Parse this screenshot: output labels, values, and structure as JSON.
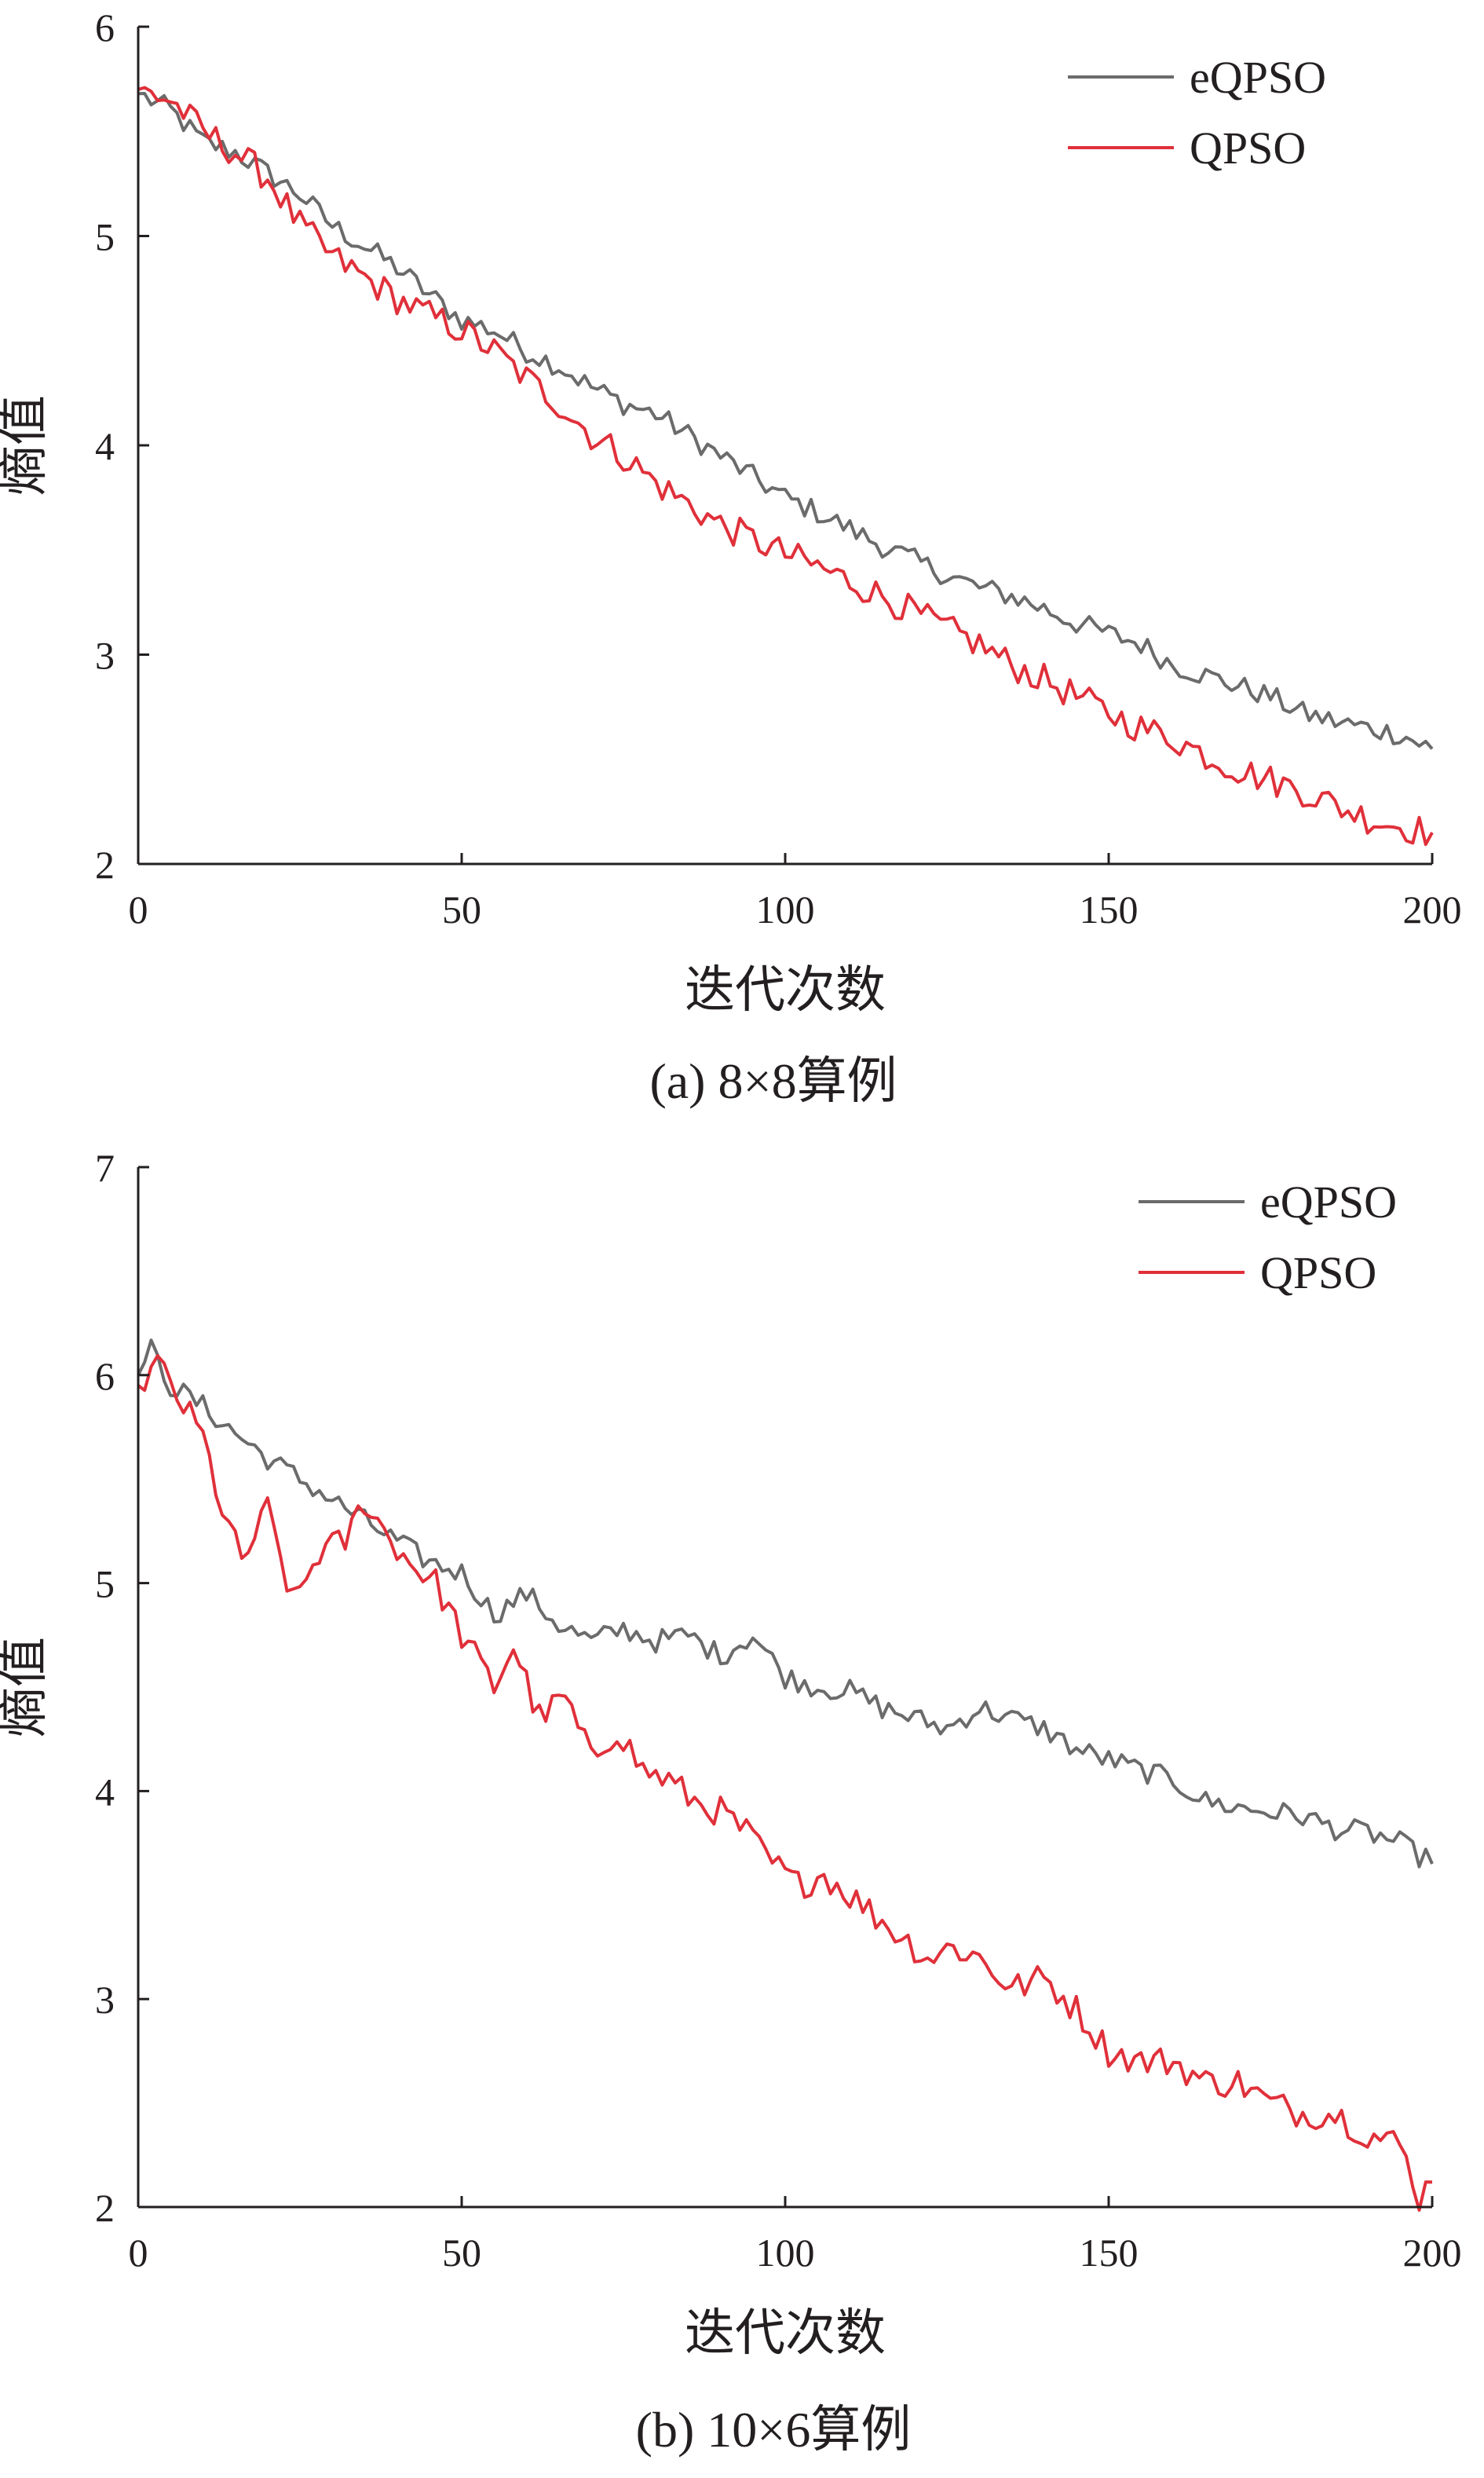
{
  "colors": {
    "eqpso": "#6b6b6b",
    "qpso": "#e0303a",
    "axis": "#231f20"
  },
  "chart_data": [
    {
      "type": "line",
      "caption": "(a) 8×8算例",
      "xlabel": "迭代次数",
      "ylabel": "熵值",
      "xlim": [
        0,
        200
      ],
      "ylim": [
        2,
        6
      ],
      "xticks": [
        "0",
        "50",
        "100",
        "150",
        "200"
      ],
      "yticks": [
        "2",
        "3",
        "4",
        "5",
        "6"
      ],
      "legend_position": "top-right",
      "series": [
        {
          "name": "eQPSO",
          "anchors": [
            [
              0,
              5.68
            ],
            [
              5,
              5.6
            ],
            [
              10,
              5.45
            ],
            [
              15,
              5.4
            ],
            [
              20,
              5.3
            ],
            [
              25,
              5.2
            ],
            [
              30,
              5.05
            ],
            [
              35,
              4.95
            ],
            [
              40,
              4.85
            ],
            [
              45,
              4.72
            ],
            [
              50,
              4.6
            ],
            [
              55,
              4.55
            ],
            [
              60,
              4.45
            ],
            [
              65,
              4.38
            ],
            [
              70,
              4.28
            ],
            [
              75,
              4.2
            ],
            [
              80,
              4.15
            ],
            [
              85,
              4.05
            ],
            [
              90,
              3.95
            ],
            [
              95,
              3.85
            ],
            [
              100,
              3.75
            ],
            [
              105,
              3.68
            ],
            [
              110,
              3.6
            ],
            [
              115,
              3.52
            ],
            [
              120,
              3.45
            ],
            [
              125,
              3.38
            ],
            [
              130,
              3.32
            ],
            [
              135,
              3.28
            ],
            [
              140,
              3.22
            ],
            [
              145,
              3.15
            ],
            [
              150,
              3.1
            ],
            [
              155,
              3.05
            ],
            [
              160,
              2.95
            ],
            [
              165,
              2.9
            ],
            [
              170,
              2.85
            ],
            [
              175,
              2.8
            ],
            [
              180,
              2.72
            ],
            [
              185,
              2.68
            ],
            [
              190,
              2.65
            ],
            [
              195,
              2.62
            ],
            [
              200,
              2.55
            ]
          ]
        },
        {
          "name": "QPSO",
          "anchors": [
            [
              0,
              5.7
            ],
            [
              5,
              5.65
            ],
            [
              10,
              5.5
            ],
            [
              15,
              5.4
            ],
            [
              20,
              5.28
            ],
            [
              25,
              5.05
            ],
            [
              30,
              4.9
            ],
            [
              35,
              4.8
            ],
            [
              40,
              4.7
            ],
            [
              45,
              4.62
            ],
            [
              50,
              4.55
            ],
            [
              55,
              4.45
            ],
            [
              60,
              4.32
            ],
            [
              65,
              4.2
            ],
            [
              70,
              4.05
            ],
            [
              75,
              3.95
            ],
            [
              80,
              3.82
            ],
            [
              85,
              3.72
            ],
            [
              90,
              3.62
            ],
            [
              95,
              3.55
            ],
            [
              100,
              3.48
            ],
            [
              105,
              3.42
            ],
            [
              110,
              3.35
            ],
            [
              115,
              3.28
            ],
            [
              120,
              3.2
            ],
            [
              125,
              3.12
            ],
            [
              130,
              3.05
            ],
            [
              135,
              2.95
            ],
            [
              140,
              2.88
            ],
            [
              145,
              2.8
            ],
            [
              150,
              2.72
            ],
            [
              155,
              2.65
            ],
            [
              160,
              2.6
            ],
            [
              165,
              2.52
            ],
            [
              170,
              2.45
            ],
            [
              175,
              2.4
            ],
            [
              180,
              2.35
            ],
            [
              185,
              2.28
            ],
            [
              190,
              2.22
            ],
            [
              195,
              2.18
            ],
            [
              200,
              2.15
            ]
          ]
        }
      ]
    },
    {
      "type": "line",
      "caption": "(b) 10×6算例",
      "xlabel": "迭代次数",
      "ylabel": "熵值",
      "xlim": [
        0,
        200
      ],
      "ylim": [
        2,
        7
      ],
      "xticks": [
        "0",
        "50",
        "100",
        "150",
        "200"
      ],
      "yticks": [
        "2",
        "3",
        "4",
        "5",
        "6",
        "7"
      ],
      "legend_position": "top-right",
      "series": [
        {
          "name": "eQPSO",
          "anchors": [
            [
              0,
              6.0
            ],
            [
              2,
              6.12
            ],
            [
              5,
              5.95
            ],
            [
              10,
              5.85
            ],
            [
              15,
              5.72
            ],
            [
              20,
              5.6
            ],
            [
              25,
              5.5
            ],
            [
              30,
              5.4
            ],
            [
              35,
              5.3
            ],
            [
              40,
              5.2
            ],
            [
              45,
              5.1
            ],
            [
              50,
              5.05
            ],
            [
              55,
              4.85
            ],
            [
              60,
              4.95
            ],
            [
              65,
              4.8
            ],
            [
              70,
              4.72
            ],
            [
              75,
              4.78
            ],
            [
              80,
              4.72
            ],
            [
              85,
              4.75
            ],
            [
              90,
              4.65
            ],
            [
              95,
              4.75
            ],
            [
              100,
              4.55
            ],
            [
              105,
              4.5
            ],
            [
              110,
              4.48
            ],
            [
              115,
              4.4
            ],
            [
              120,
              4.35
            ],
            [
              125,
              4.3
            ],
            [
              130,
              4.4
            ],
            [
              135,
              4.35
            ],
            [
              140,
              4.3
            ],
            [
              145,
              4.2
            ],
            [
              150,
              4.15
            ],
            [
              155,
              4.1
            ],
            [
              160,
              4.05
            ],
            [
              165,
              3.95
            ],
            [
              170,
              3.92
            ],
            [
              175,
              3.9
            ],
            [
              180,
              3.88
            ],
            [
              185,
              3.82
            ],
            [
              190,
              3.8
            ],
            [
              195,
              3.75
            ],
            [
              200,
              3.65
            ]
          ]
        },
        {
          "name": "QPSO",
          "anchors": [
            [
              0,
              5.95
            ],
            [
              3,
              6.05
            ],
            [
              7,
              5.85
            ],
            [
              10,
              5.7
            ],
            [
              13,
              5.35
            ],
            [
              16,
              5.1
            ],
            [
              20,
              5.35
            ],
            [
              24,
              4.9
            ],
            [
              28,
              5.15
            ],
            [
              32,
              5.2
            ],
            [
              35,
              5.4
            ],
            [
              38,
              5.25
            ],
            [
              42,
              5.1
            ],
            [
              46,
              5.0
            ],
            [
              50,
              4.75
            ],
            [
              55,
              4.5
            ],
            [
              58,
              4.7
            ],
            [
              62,
              4.35
            ],
            [
              66,
              4.45
            ],
            [
              70,
              4.15
            ],
            [
              74,
              4.3
            ],
            [
              78,
              4.1
            ],
            [
              82,
              4.05
            ],
            [
              86,
              3.95
            ],
            [
              90,
              3.9
            ],
            [
              94,
              3.8
            ],
            [
              98,
              3.65
            ],
            [
              102,
              3.55
            ],
            [
              106,
              3.6
            ],
            [
              110,
              3.5
            ],
            [
              114,
              3.4
            ],
            [
              118,
              3.3
            ],
            [
              122,
              3.2
            ],
            [
              126,
              3.25
            ],
            [
              130,
              3.2
            ],
            [
              135,
              3.05
            ],
            [
              140,
              3.1
            ],
            [
              145,
              2.95
            ],
            [
              150,
              2.75
            ],
            [
              155,
              2.7
            ],
            [
              160,
              2.7
            ],
            [
              165,
              2.6
            ],
            [
              170,
              2.6
            ],
            [
              175,
              2.5
            ],
            [
              180,
              2.45
            ],
            [
              185,
              2.45
            ],
            [
              190,
              2.35
            ],
            [
              195,
              2.3
            ],
            [
              198,
              2.05
            ],
            [
              200,
              2.12
            ]
          ]
        }
      ]
    }
  ]
}
